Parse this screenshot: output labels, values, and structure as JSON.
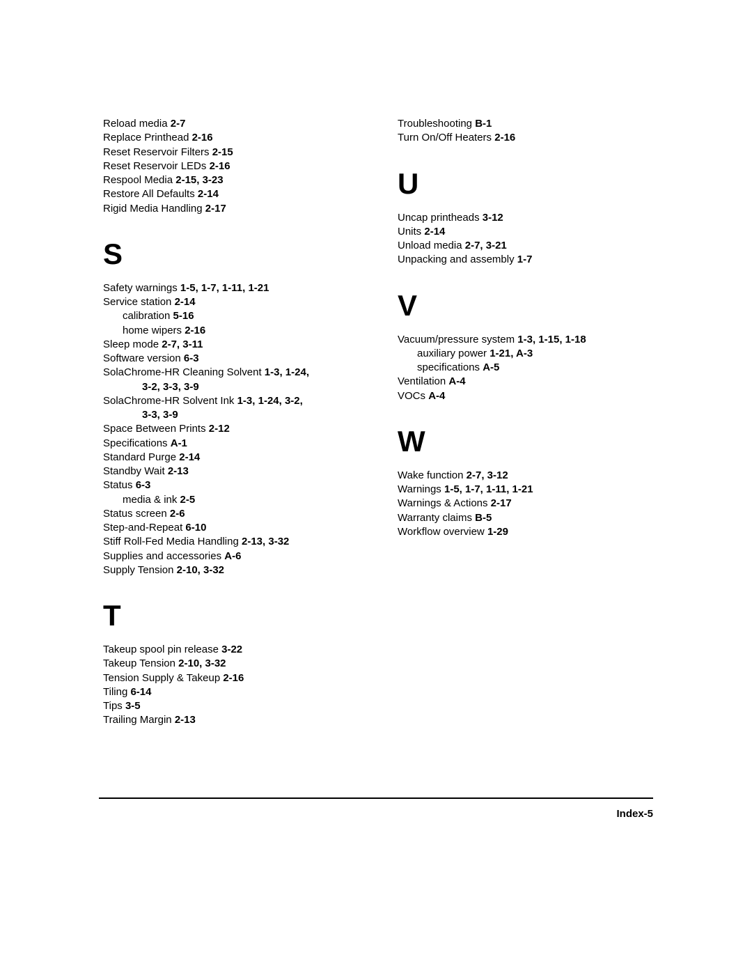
{
  "page_label": "Index-5",
  "left_column": [
    {
      "letter": null,
      "entries": [
        {
          "t": "Reload media",
          "r": "2-7"
        },
        {
          "t": "Replace Printhead",
          "r": "2-16"
        },
        {
          "t": "Reset Reservoir Filters",
          "r": "2-15"
        },
        {
          "t": "Reset Reservoir LEDs",
          "r": "2-16"
        },
        {
          "t": "Respool Media",
          "r": "2-15, 3-23"
        },
        {
          "t": "Restore All Defaults",
          "r": "2-14"
        },
        {
          "t": "Rigid Media Handling",
          "r": "2-17"
        }
      ]
    },
    {
      "letter": "S",
      "entries": [
        {
          "t": "Safety warnings",
          "r": "1-5, 1-7, 1-11, 1-21"
        },
        {
          "t": "Service station",
          "r": "2-14"
        },
        {
          "t": "calibration",
          "r": "5-16",
          "sub": true
        },
        {
          "t": "home wipers",
          "r": "2-16",
          "sub": true
        },
        {
          "t": "Sleep mode",
          "r": "2-7, 3-11"
        },
        {
          "t": "Software version",
          "r": "6-3"
        },
        {
          "t": "SolaChrome-HR Cleaning Solvent",
          "r": "1-3, 1-24,",
          "wrap": "3-2, 3-3, 3-9"
        },
        {
          "t": "SolaChrome-HR Solvent Ink",
          "r": "1-3, 1-24, 3-2,",
          "wrap": "3-3, 3-9"
        },
        {
          "t": "Space Between Prints",
          "r": "2-12"
        },
        {
          "t": "Specifications",
          "r": "A-1"
        },
        {
          "t": "Standard Purge",
          "r": "2-14"
        },
        {
          "t": "Standby Wait",
          "r": "2-13"
        },
        {
          "t": "Status",
          "r": "6-3"
        },
        {
          "t": "media & ink",
          "r": "2-5",
          "sub": true
        },
        {
          "t": "Status screen",
          "r": "2-6"
        },
        {
          "t": "Step-and-Repeat",
          "r": "6-10"
        },
        {
          "t": "Stiff Roll-Fed Media Handling",
          "r": "2-13, 3-32"
        },
        {
          "t": "Supplies and accessories",
          "r": "A-6"
        },
        {
          "t": "Supply Tension",
          "r": "2-10, 3-32"
        }
      ]
    },
    {
      "letter": "T",
      "entries": [
        {
          "t": "Takeup spool pin release",
          "r": "3-22"
        },
        {
          "t": "Takeup Tension",
          "r": "2-10, 3-32"
        },
        {
          "t": "Tension Supply & Takeup",
          "r": "2-16"
        },
        {
          "t": "Tiling",
          "r": "6-14"
        },
        {
          "t": "Tips",
          "r": "3-5"
        },
        {
          "t": "Trailing Margin",
          "r": "2-13"
        }
      ]
    }
  ],
  "right_column": [
    {
      "letter": null,
      "entries": [
        {
          "t": "Troubleshooting",
          "r": "B-1"
        },
        {
          "t": "Turn On/Off Heaters",
          "r": "2-16"
        }
      ]
    },
    {
      "letter": "U",
      "entries": [
        {
          "t": "Uncap printheads",
          "r": "3-12"
        },
        {
          "t": "Units",
          "r": "2-14"
        },
        {
          "t": "Unload media",
          "r": "2-7, 3-21"
        },
        {
          "t": "Unpacking and assembly",
          "r": "1-7"
        }
      ]
    },
    {
      "letter": "V",
      "entries": [
        {
          "t": "Vacuum/pressure system",
          "r": "1-3, 1-15, 1-18"
        },
        {
          "t": "auxiliary power",
          "r": "1-21, A-3",
          "sub": true
        },
        {
          "t": "specifications",
          "r": "A-5",
          "sub": true
        },
        {
          "t": "Ventilation",
          "r": "A-4"
        },
        {
          "t": "VOCs",
          "r": "A-4"
        }
      ]
    },
    {
      "letter": "W",
      "entries": [
        {
          "t": "Wake function",
          "r": "2-7, 3-12"
        },
        {
          "t": "Warnings",
          "r": "1-5, 1-7, 1-11, 1-21"
        },
        {
          "t": "Warnings & Actions",
          "r": "2-17"
        },
        {
          "t": "Warranty claims",
          "r": "B-5"
        },
        {
          "t": "Workflow overview",
          "r": "1-29"
        }
      ]
    }
  ]
}
